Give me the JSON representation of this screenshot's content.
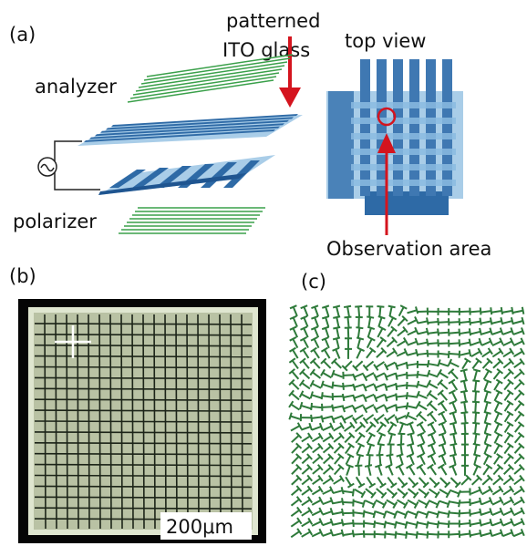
{
  "panel_a": {
    "label": "(a)",
    "ito_label": [
      "patterned",
      "ITO glass"
    ],
    "analyzer": "analyzer",
    "polarizer": "polarizer",
    "top_view": "top view",
    "observation": "Observation area"
  },
  "panel_b": {
    "label": "(b)",
    "scale_bar": "200μm"
  },
  "panel_c": {
    "label": "(c)"
  }
}
